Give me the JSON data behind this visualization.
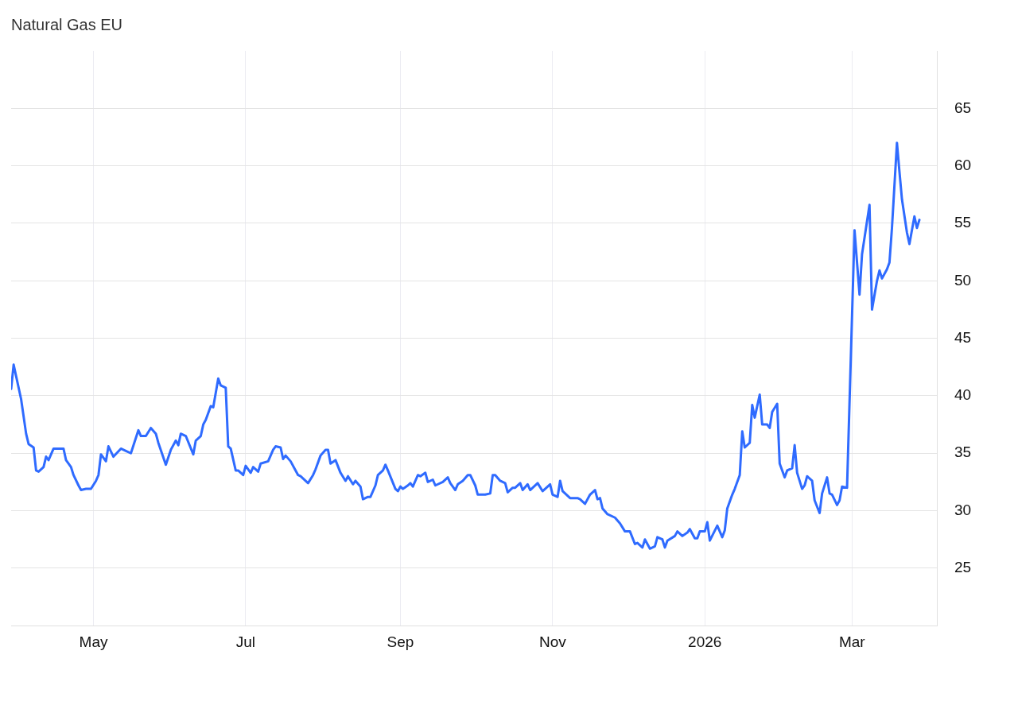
{
  "chart_data": {
    "type": "line",
    "title": "Natural Gas EU",
    "x": [
      "2025-03-29",
      "2025-03-30",
      "2025-04-02",
      "2025-04-04",
      "2025-04-05",
      "2025-04-07",
      "2025-04-08",
      "2025-04-09",
      "2025-04-11",
      "2025-04-12",
      "2025-04-13",
      "2025-04-15",
      "2025-04-19",
      "2025-04-20",
      "2025-04-22",
      "2025-04-23",
      "2025-04-25",
      "2025-04-26",
      "2025-04-28",
      "2025-04-30",
      "2025-05-02",
      "2025-05-03",
      "2025-05-04",
      "2025-05-06",
      "2025-05-07",
      "2025-05-09",
      "2025-05-12",
      "2025-05-14",
      "2025-05-16",
      "2025-05-19",
      "2025-05-20",
      "2025-05-22",
      "2025-05-24",
      "2025-05-26",
      "2025-05-27",
      "2025-05-30",
      "2025-06-01",
      "2025-06-03",
      "2025-06-04",
      "2025-06-05",
      "2025-06-07",
      "2025-06-10",
      "2025-06-11",
      "2025-06-13",
      "2025-06-14",
      "2025-06-15",
      "2025-06-17",
      "2025-06-18",
      "2025-06-20",
      "2025-06-21",
      "2025-06-23",
      "2025-06-24",
      "2025-06-25",
      "2025-06-27",
      "2025-06-28",
      "2025-06-30",
      "2025-07-01",
      "2025-07-03",
      "2025-07-04",
      "2025-07-06",
      "2025-07-07",
      "2025-07-10",
      "2025-07-12",
      "2025-07-13",
      "2025-07-15",
      "2025-07-16",
      "2025-07-17",
      "2025-07-19",
      "2025-07-21",
      "2025-07-22",
      "2025-07-23",
      "2025-07-26",
      "2025-07-28",
      "2025-07-29",
      "2025-07-31",
      "2025-08-02",
      "2025-08-03",
      "2025-08-04",
      "2025-08-06",
      "2025-08-08",
      "2025-08-10",
      "2025-08-11",
      "2025-08-13",
      "2025-08-14",
      "2025-08-16",
      "2025-08-17",
      "2025-08-19",
      "2025-08-20",
      "2025-08-22",
      "2025-08-23",
      "2025-08-25",
      "2025-08-26",
      "2025-08-27",
      "2025-08-30",
      "2025-08-31",
      "2025-09-01",
      "2025-09-02",
      "2025-09-04",
      "2025-09-05",
      "2025-09-06",
      "2025-09-08",
      "2025-09-09",
      "2025-09-11",
      "2025-09-12",
      "2025-09-14",
      "2025-09-15",
      "2025-09-18",
      "2025-09-20",
      "2025-09-21",
      "2025-09-23",
      "2025-09-24",
      "2025-09-26",
      "2025-09-28",
      "2025-09-29",
      "2025-10-01",
      "2025-10-02",
      "2025-10-05",
      "2025-10-07",
      "2025-10-08",
      "2025-10-09",
      "2025-10-11",
      "2025-10-13",
      "2025-10-14",
      "2025-10-16",
      "2025-10-17",
      "2025-10-19",
      "2025-10-20",
      "2025-10-22",
      "2025-10-23",
      "2025-10-26",
      "2025-10-28",
      "2025-10-29",
      "2025-10-31",
      "2025-11-01",
      "2025-11-03",
      "2025-11-04",
      "2025-11-05",
      "2025-11-08",
      "2025-11-11",
      "2025-11-12",
      "2025-11-14",
      "2025-11-16",
      "2025-11-18",
      "2025-11-19",
      "2025-11-20",
      "2025-11-21",
      "2025-11-23",
      "2025-11-26",
      "2025-11-28",
      "2025-11-30",
      "2025-12-02",
      "2025-12-04",
      "2025-12-05",
      "2025-12-07",
      "2025-12-08",
      "2025-12-10",
      "2025-12-12",
      "2025-12-13",
      "2025-12-15",
      "2025-12-16",
      "2025-12-17",
      "2025-12-20",
      "2025-12-21",
      "2025-12-23",
      "2025-12-25",
      "2025-12-26",
      "2025-12-28",
      "2025-12-29",
      "2025-12-30",
      "2026-01-01",
      "2026-01-02",
      "2026-01-03",
      "2026-01-06",
      "2026-01-08",
      "2026-01-09",
      "2026-01-10",
      "2026-01-12",
      "2026-01-13",
      "2026-01-15",
      "2026-01-16",
      "2026-01-17",
      "2026-01-19",
      "2026-01-20",
      "2026-01-21",
      "2026-01-23",
      "2026-01-24",
      "2026-01-26",
      "2026-01-27",
      "2026-01-28",
      "2026-01-30",
      "2026-01-31",
      "2026-02-02",
      "2026-02-03",
      "2026-02-05",
      "2026-02-06",
      "2026-02-07",
      "2026-02-09",
      "2026-02-10",
      "2026-02-11",
      "2026-02-13",
      "2026-02-14",
      "2026-02-16",
      "2026-02-17",
      "2026-02-19",
      "2026-02-20",
      "2026-02-21",
      "2026-02-23",
      "2026-02-24",
      "2026-02-25",
      "2026-02-27",
      "2026-03-02",
      "2026-03-04",
      "2026-03-05",
      "2026-03-08",
      "2026-03-09",
      "2026-03-11",
      "2026-03-12",
      "2026-03-13",
      "2026-03-15",
      "2026-03-16",
      "2026-03-17",
      "2026-03-19",
      "2026-03-20",
      "2026-03-21",
      "2026-03-23",
      "2026-03-24",
      "2026-03-26",
      "2026-03-27",
      "2026-03-28"
    ],
    "series": [
      {
        "color": "#2f6bff",
        "values": [
          40.6,
          42.7,
          39.7,
          36.7,
          35.8,
          35.5,
          33.5,
          33.4,
          33.8,
          34.7,
          34.4,
          35.4,
          35.4,
          34.4,
          33.8,
          33.1,
          32.2,
          31.8,
          31.9,
          31.9,
          32.6,
          33.1,
          34.9,
          34.3,
          35.6,
          34.7,
          35.4,
          35.2,
          35.0,
          37.0,
          36.5,
          36.5,
          37.2,
          36.7,
          35.9,
          34.0,
          35.3,
          36.1,
          35.7,
          36.7,
          36.5,
          34.9,
          36.1,
          36.5,
          37.5,
          37.9,
          39.1,
          39.0,
          41.5,
          40.9,
          40.7,
          35.6,
          35.4,
          33.5,
          33.5,
          33.1,
          33.9,
          33.3,
          33.8,
          33.4,
          34.1,
          34.3,
          35.3,
          35.6,
          35.5,
          34.5,
          34.8,
          34.3,
          33.5,
          33.1,
          33.0,
          32.4,
          33.1,
          33.6,
          34.8,
          35.3,
          35.3,
          34.1,
          34.4,
          33.3,
          32.6,
          33.0,
          32.3,
          32.6,
          32.1,
          31.0,
          31.2,
          31.2,
          32.2,
          33.1,
          33.5,
          34.0,
          33.5,
          31.9,
          31.7,
          32.1,
          31.9,
          32.2,
          32.4,
          32.1,
          33.1,
          33.0,
          33.3,
          32.5,
          32.7,
          32.2,
          32.5,
          32.9,
          32.4,
          31.8,
          32.3,
          32.6,
          33.1,
          33.1,
          32.2,
          31.4,
          31.4,
          31.5,
          33.1,
          33.1,
          32.6,
          32.4,
          31.6,
          32.0,
          32.0,
          32.4,
          31.8,
          32.3,
          31.8,
          32.4,
          31.7,
          31.9,
          32.3,
          31.4,
          31.2,
          32.6,
          31.7,
          31.1,
          31.1,
          31.0,
          30.6,
          31.4,
          31.8,
          31.0,
          31.1,
          30.2,
          29.7,
          29.4,
          28.9,
          28.2,
          28.2,
          27.1,
          27.2,
          26.8,
          27.5,
          26.7,
          26.9,
          27.7,
          27.5,
          26.8,
          27.4,
          27.8,
          28.2,
          27.8,
          28.1,
          28.4,
          27.6,
          27.6,
          28.2,
          28.2,
          29.0,
          27.4,
          28.7,
          27.7,
          28.3,
          30.2,
          31.4,
          31.9,
          33.1,
          36.9,
          35.5,
          35.9,
          39.2,
          38.1,
          40.1,
          37.5,
          37.5,
          37.2,
          38.6,
          39.3,
          34.1,
          32.9,
          33.5,
          33.7,
          35.7,
          33.3,
          31.9,
          32.2,
          33.0,
          32.6,
          30.9,
          29.8,
          31.5,
          32.9,
          31.5,
          31.4,
          30.5,
          30.9,
          32.1,
          32.0,
          54.4,
          48.8,
          52.3,
          56.6,
          47.5,
          50.0,
          50.9,
          50.2,
          51.0,
          51.6,
          54.6,
          62.0,
          59.5,
          57.1,
          54.2,
          53.2,
          55.6,
          54.6,
          55.3
        ]
      }
    ],
    "xlim": [
      "2025-03-29",
      "2026-04-04"
    ],
    "xticks": [
      {
        "value": "2025-05-01",
        "label": "May"
      },
      {
        "value": "2025-07-01",
        "label": "Jul"
      },
      {
        "value": "2025-09-01",
        "label": "Sep"
      },
      {
        "value": "2025-11-01",
        "label": "Nov"
      },
      {
        "value": "2026-01-01",
        "label": "2026"
      },
      {
        "value": "2026-03-01",
        "label": "Mar"
      }
    ],
    "ylim": [
      20,
      70
    ],
    "yticks": [
      25,
      30,
      35,
      40,
      45,
      50,
      55,
      60,
      65
    ],
    "grid": true,
    "marker": "none",
    "line_style": "solid"
  }
}
